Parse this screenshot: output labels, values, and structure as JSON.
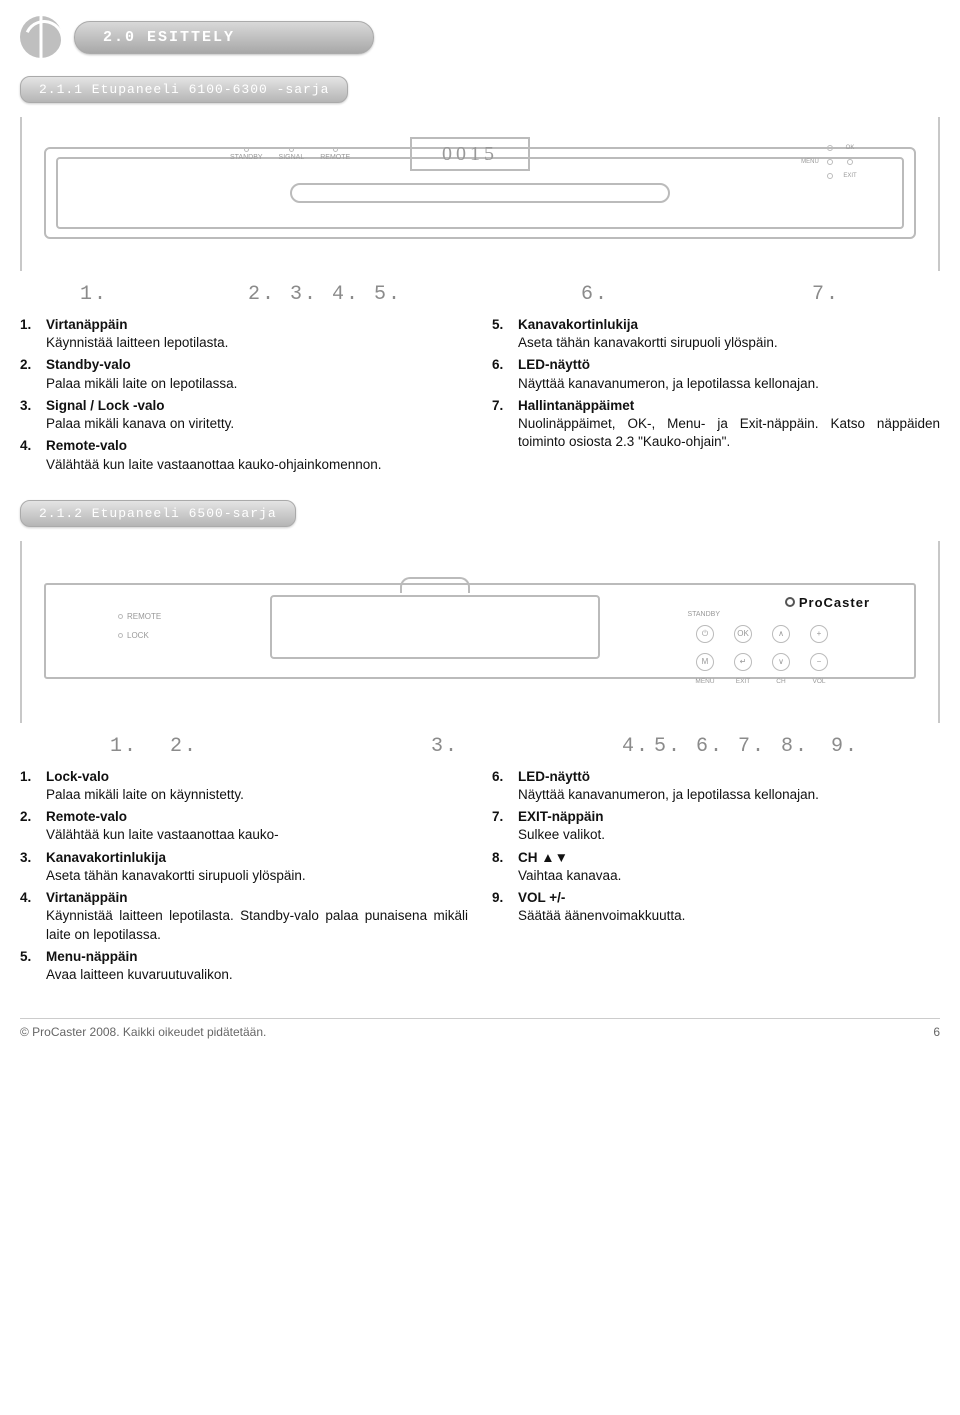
{
  "header": {
    "section_title": "2.0 ESITTELY"
  },
  "sub1": {
    "title": "2.1.1 Etupaneeli 6100-6300 -sarja"
  },
  "device1": {
    "display": "0015",
    "leds": [
      "STANDBY",
      "SIGNAL",
      "REMOTE"
    ],
    "controls": {
      "ok": "OK",
      "menu": "MENU",
      "exit": "EXIT"
    }
  },
  "numrow1": [
    "1.",
    "2. 3. 4. 5.",
    "6.",
    "7."
  ],
  "list1_left": [
    {
      "n": "1.",
      "t": "Virtanäppäin",
      "d": "Käynnistää laitteen lepotilasta."
    },
    {
      "n": "2.",
      "t": "Standby-valo",
      "d": "Palaa mikäli laite on lepotilassa."
    },
    {
      "n": "3.",
      "t": "Signal / Lock -valo",
      "d": "Palaa mikäli kanava on viritetty."
    },
    {
      "n": "4.",
      "t": "Remote-valo",
      "d": "Välähtää kun laite vastaanottaa kauko-ohjainkomennon."
    }
  ],
  "list1_right": [
    {
      "n": "5.",
      "t": "Kanavakortinlukija",
      "d": "Aseta tähän kanavakortti sirupuoli ylöspäin."
    },
    {
      "n": "6.",
      "t": "LED-näyttö",
      "d": "Näyttää kanavanumeron, ja lepotilassa kellonajan."
    },
    {
      "n": "7.",
      "t": "Hallintanäppäimet",
      "d": "Nuolinäppäimet, OK-, Menu- ja Exit-näppäin. Katso näppäiden toiminto osiosta 2.3 \"Kauko-ohjain\"."
    }
  ],
  "sub2": {
    "title": "2.1.2 Etupaneeli 6500-sarja"
  },
  "device2": {
    "labels": [
      "REMOTE",
      "LOCK"
    ],
    "brand": "ProCaster",
    "standby_label": "STANDBY",
    "btns_top": [
      "",
      "OK",
      "∧",
      "+"
    ],
    "btns_top_first_icon": "⏻",
    "btns_bot": [
      "M",
      "↵",
      "∨",
      "−"
    ],
    "btn_labels": [
      "MENU",
      "EXIT",
      "CH",
      "VOL"
    ]
  },
  "numrow2": [
    "1.",
    "2.",
    "3.",
    "4.",
    "5. 6. 7.",
    "8.",
    "9."
  ],
  "list2_left": [
    {
      "n": "1.",
      "t": "Lock-valo",
      "d": "Palaa mikäli laite on käynnistetty."
    },
    {
      "n": "2.",
      "t": "Remote-valo",
      "d": "Välähtää kun laite vastaanottaa kauko-"
    },
    {
      "n": "3.",
      "t": "Kanavakortinlukija",
      "d": "Aseta tähän kanavakortti sirupuoli ylöspäin."
    },
    {
      "n": "4.",
      "t": "Virtanäppäin",
      "d": "Käynnistää laitteen lepotilasta. Standby-valo palaa punaisena mikäli laite on lepotilassa."
    },
    {
      "n": "5.",
      "t": "Menu-näppäin",
      "d": "Avaa laitteen kuvaruutuvalikon."
    }
  ],
  "list2_right": [
    {
      "n": "6.",
      "t": "LED-näyttö",
      "d": "Näyttää kanavanumeron, ja lepotilassa kellonajan."
    },
    {
      "n": "7.",
      "t": "EXIT-näppäin",
      "d": "Sulkee valikot."
    },
    {
      "n": "8.",
      "t": "CH ▲▼",
      "d": "Vaihtaa kanavaa."
    },
    {
      "n": "9.",
      "t": "VOL +/-",
      "d": "Säätää äänenvoimakkuutta."
    }
  ],
  "footer": {
    "copy": "© ProCaster 2008. Kaikki oikeudet pidätetään.",
    "page": "6"
  }
}
